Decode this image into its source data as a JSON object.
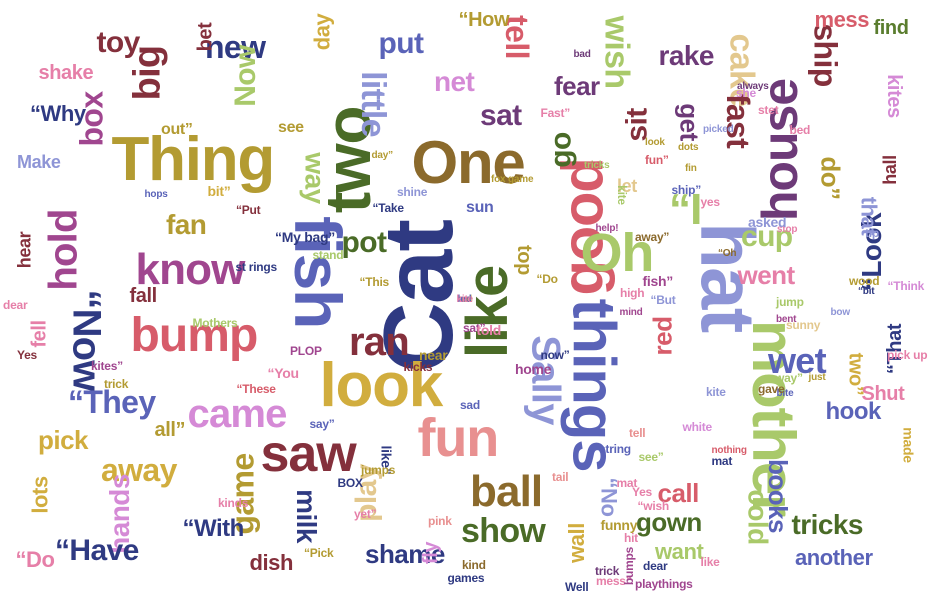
{
  "palette": {
    "green": "#5a7d2e",
    "darkgreen": "#4a6b27",
    "lime": "#a9c96a",
    "pink": "#e67fa8",
    "magenta": "#a0468f",
    "purple": "#6d3a78",
    "blue": "#5a63b8",
    "navy": "#2f3a82",
    "lavender": "#8e95d6",
    "olive": "#b39b32",
    "mustard": "#d1ad3e",
    "brown": "#8b6a2c",
    "maroon": "#84303c",
    "red": "#d75c6a",
    "salmon": "#e89090",
    "tan": "#e3c88e",
    "orchid": "#d58ad6",
    "sky": "#9aa5d9"
  },
  "words": [
    {
      "text": "Cat",
      "color": "navy"
    },
    {
      "text": "fish",
      "color": "blue"
    },
    {
      "text": "Thing",
      "color": "olive"
    },
    {
      "text": "two",
      "color": "darkgreen"
    },
    {
      "text": "One",
      "color": "brown"
    },
    {
      "text": "house",
      "color": "purple"
    },
    {
      "text": "things",
      "color": "blue"
    },
    {
      "text": "hat",
      "color": "lavender"
    },
    {
      "text": "mother",
      "color": "lime"
    },
    {
      "text": "good",
      "color": "red"
    },
    {
      "text": "like",
      "color": "darkgreen"
    },
    {
      "text": "look",
      "color": "mustard"
    },
    {
      "text": "bump",
      "color": "red"
    },
    {
      "text": "know",
      "color": "magenta"
    },
    {
      "text": "hold",
      "color": "magenta"
    },
    {
      "text": "saw",
      "color": "maroon"
    },
    {
      "text": "fun",
      "color": "salmon"
    },
    {
      "text": "Oh",
      "color": "lime"
    },
    {
      "text": "Sally",
      "color": "lavender"
    },
    {
      "text": "came",
      "color": "orchid"
    },
    {
      "text": "ball",
      "color": "brown"
    },
    {
      "text": "“Now",
      "color": "navy"
    },
    {
      "text": "big",
      "color": "maroon"
    },
    {
      "text": "box",
      "color": "magenta"
    },
    {
      "text": "toy",
      "color": "maroon"
    },
    {
      "text": "new",
      "color": "navy"
    },
    {
      "text": "Now",
      "color": "lime"
    },
    {
      "text": "little",
      "color": "lavender"
    },
    {
      "text": "put",
      "color": "blue"
    },
    {
      "text": "net",
      "color": "orchid"
    },
    {
      "text": "tell",
      "color": "red"
    },
    {
      "text": "sat",
      "color": "purple"
    },
    {
      "text": "fear",
      "color": "purple"
    },
    {
      "text": "wish",
      "color": "lime"
    },
    {
      "text": "go",
      "color": "darkgreen"
    },
    {
      "text": "sit",
      "color": "maroon"
    },
    {
      "text": "get",
      "color": "purple"
    },
    {
      "text": "cake",
      "color": "tan"
    },
    {
      "text": "fast",
      "color": "maroon"
    },
    {
      "text": "ship",
      "color": "maroon"
    },
    {
      "text": "rake",
      "color": "purple"
    },
    {
      "text": "mess",
      "color": "red"
    },
    {
      "text": "find",
      "color": "green"
    },
    {
      "text": "kites",
      "color": "orchid"
    },
    {
      "text": "“I",
      "color": "lime"
    },
    {
      "text": "do”",
      "color": "olive"
    },
    {
      "text": "day",
      "color": "mustard"
    },
    {
      "text": "“How",
      "color": "olive"
    },
    {
      "text": "shake",
      "color": "pink"
    },
    {
      "text": "bet",
      "color": "maroon"
    },
    {
      "text": "“Why",
      "color": "navy"
    },
    {
      "text": "Make",
      "color": "lavender"
    },
    {
      "text": "fan",
      "color": "olive"
    },
    {
      "text": "pot",
      "color": "darkgreen"
    },
    {
      "text": "way",
      "color": "lime"
    },
    {
      "text": "cup",
      "color": "lime"
    },
    {
      "text": "went",
      "color": "pink"
    },
    {
      "text": "“Look",
      "color": "navy"
    },
    {
      "text": "that",
      "color": "lavender"
    },
    {
      "text": "hall",
      "color": "maroon"
    },
    {
      "text": "hear",
      "color": "maroon"
    },
    {
      "text": "fall",
      "color": "maroon"
    },
    {
      "text": "fell",
      "color": "pink"
    },
    {
      "text": "“They",
      "color": "blue"
    },
    {
      "text": "ran",
      "color": "maroon"
    },
    {
      "text": "top",
      "color": "olive"
    },
    {
      "text": "red",
      "color": "red"
    },
    {
      "text": "wet",
      "color": "blue"
    },
    {
      "text": "two”",
      "color": "mustard"
    },
    {
      "text": "“That",
      "color": "navy"
    },
    {
      "text": "hook",
      "color": "blue"
    },
    {
      "text": "Shut",
      "color": "pink"
    },
    {
      "text": "pick",
      "color": "mustard"
    },
    {
      "text": "away",
      "color": "mustard"
    },
    {
      "text": "game",
      "color": "olive"
    },
    {
      "text": "hands",
      "color": "orchid"
    },
    {
      "text": "lots",
      "color": "mustard"
    },
    {
      "text": "“With",
      "color": "navy"
    },
    {
      "text": "“Have",
      "color": "navy"
    },
    {
      "text": "“Do",
      "color": "pink"
    },
    {
      "text": "all”",
      "color": "olive"
    },
    {
      "text": "milk",
      "color": "navy"
    },
    {
      "text": "dish",
      "color": "maroon"
    },
    {
      "text": "play",
      "color": "tan"
    },
    {
      "text": "show",
      "color": "darkgreen"
    },
    {
      "text": "shame",
      "color": "navy"
    },
    {
      "text": "fly",
      "color": "orchid"
    },
    {
      "text": "call",
      "color": "red"
    },
    {
      "text": "gown",
      "color": "darkgreen"
    },
    {
      "text": "want",
      "color": "lime"
    },
    {
      "text": "books",
      "color": "blue"
    },
    {
      "text": "cold",
      "color": "lime"
    },
    {
      "text": "tricks",
      "color": "darkgreen"
    },
    {
      "text": "another",
      "color": "blue"
    },
    {
      "text": "wall",
      "color": "mustard"
    },
    {
      "text": "“No",
      "color": "lavender"
    },
    {
      "text": "sun",
      "color": "blue"
    },
    {
      "text": "let",
      "color": "tan"
    },
    {
      "text": "see",
      "color": "olive"
    },
    {
      "text": "bit”",
      "color": "mustard"
    },
    {
      "text": "out”",
      "color": "olive"
    },
    {
      "text": "kite",
      "color": "lime"
    },
    {
      "text": "hops",
      "color": "blue"
    },
    {
      "text": "fun”",
      "color": "red"
    },
    {
      "text": "tricks",
      "color": "lime"
    },
    {
      "text": "fox game",
      "color": "olive"
    },
    {
      "text": "Fast”",
      "color": "pink"
    },
    {
      "text": "look",
      "color": "olive"
    },
    {
      "text": "bad",
      "color": "purple"
    },
    {
      "text": "always",
      "color": "purple"
    },
    {
      "text": "away”",
      "color": "brown"
    },
    {
      "text": "“Oh",
      "color": "brown"
    },
    {
      "text": "bow",
      "color": "lavender"
    },
    {
      "text": "stop",
      "color": "pink"
    },
    {
      "text": "jump",
      "color": "lime"
    },
    {
      "text": "bent",
      "color": "magenta"
    },
    {
      "text": "wood",
      "color": "olive"
    },
    {
      "text": "“Think",
      "color": "orchid"
    },
    {
      "text": "“bit",
      "color": "navy"
    },
    {
      "text": "pick up",
      "color": "pink"
    },
    {
      "text": "made",
      "color": "mustard"
    },
    {
      "text": "nothing",
      "color": "red"
    },
    {
      "text": "mat",
      "color": "navy"
    },
    {
      "text": "white",
      "color": "orchid"
    },
    {
      "text": "bite",
      "color": "blue"
    },
    {
      "text": "way”",
      "color": "lime"
    },
    {
      "text": "sunny",
      "color": "tan"
    },
    {
      "text": "mind",
      "color": "magenta"
    },
    {
      "text": "now”",
      "color": "navy"
    },
    {
      "text": "home",
      "color": "magenta"
    },
    {
      "text": "just",
      "color": "olive"
    },
    {
      "text": "gave",
      "color": "brown"
    },
    {
      "text": "“You",
      "color": "pink"
    },
    {
      "text": "“These",
      "color": "red"
    },
    {
      "text": "PLOP",
      "color": "magenta"
    },
    {
      "text": "say”",
      "color": "blue"
    },
    {
      "text": "like”",
      "color": "navy"
    },
    {
      "text": "kicks",
      "color": "maroon"
    },
    {
      "text": "near",
      "color": "olive"
    },
    {
      "text": "sad",
      "color": "blue"
    },
    {
      "text": "tail",
      "color": "salmon"
    },
    {
      "text": "trick",
      "color": "olive"
    },
    {
      "text": "kites”",
      "color": "magenta"
    },
    {
      "text": "Yes",
      "color": "maroon"
    },
    {
      "text": "dear",
      "color": "pink"
    },
    {
      "text": "Mothers",
      "color": "lime"
    },
    {
      "text": "st rings",
      "color": "navy"
    },
    {
      "text": "stand",
      "color": "lime"
    },
    {
      "text": "“My bag”",
      "color": "navy"
    },
    {
      "text": "“This",
      "color": "olive"
    },
    {
      "text": "“Put",
      "color": "maroon"
    },
    {
      "text": "“Take",
      "color": "navy"
    },
    {
      "text": "day”",
      "color": "olive"
    },
    {
      "text": "shine",
      "color": "lavender"
    },
    {
      "text": "yet”",
      "color": "pink"
    },
    {
      "text": "BOX",
      "color": "navy"
    },
    {
      "text": "jumps",
      "color": "olive"
    },
    {
      "text": "pink",
      "color": "salmon"
    },
    {
      "text": "“Pick",
      "color": "olive"
    },
    {
      "text": "kinds",
      "color": "pink"
    },
    {
      "text": "games",
      "color": "navy"
    },
    {
      "text": "kind",
      "color": "brown"
    },
    {
      "text": "funny",
      "color": "olive"
    },
    {
      "text": "mess”",
      "color": "pink"
    },
    {
      "text": "Well",
      "color": "navy"
    },
    {
      "text": "trick",
      "color": "purple"
    },
    {
      "text": "bumps",
      "color": "magenta"
    },
    {
      "text": "playthings",
      "color": "magenta"
    },
    {
      "text": "dear",
      "color": "navy"
    },
    {
      "text": "like",
      "color": "pink"
    },
    {
      "text": "high",
      "color": "pink"
    },
    {
      "text": "“But",
      "color": "lavender"
    },
    {
      "text": "fish”",
      "color": "magenta"
    },
    {
      "text": "sat”",
      "color": "magenta"
    },
    {
      "text": "told",
      "color": "pink"
    },
    {
      "text": "“Do",
      "color": "olive"
    },
    {
      "text": "help!",
      "color": "magenta"
    },
    {
      "text": "ship”",
      "color": "blue"
    },
    {
      "text": "picked",
      "color": "lavender"
    },
    {
      "text": "dots",
      "color": "olive"
    },
    {
      "text": "fin",
      "color": "olive"
    },
    {
      "text": "yes",
      "color": "pink"
    },
    {
      "text": "she",
      "color": "orchid"
    },
    {
      "text": "stet",
      "color": "pink"
    },
    {
      "text": "asked",
      "color": "lavender"
    },
    {
      "text": "bed",
      "color": "pink"
    },
    {
      "text": "tip",
      "color": "lavender"
    },
    {
      "text": "kite",
      "color": "lavender"
    },
    {
      "text": "string",
      "color": "blue"
    },
    {
      "text": "tell",
      "color": "salmon"
    },
    {
      "text": "mat",
      "color": "pink"
    },
    {
      "text": "see”",
      "color": "lime"
    },
    {
      "text": "Yes",
      "color": "pink"
    },
    {
      "text": "“wish",
      "color": "pink"
    },
    {
      "text": "hit",
      "color": "pink"
    },
    {
      "text": "bet",
      "color": "pink"
    },
    {
      "text": "red",
      "color": "olive"
    },
    {
      "text": "led",
      "color": "blue"
    },
    {
      "text": "kite",
      "color": "pink"
    }
  ]
}
